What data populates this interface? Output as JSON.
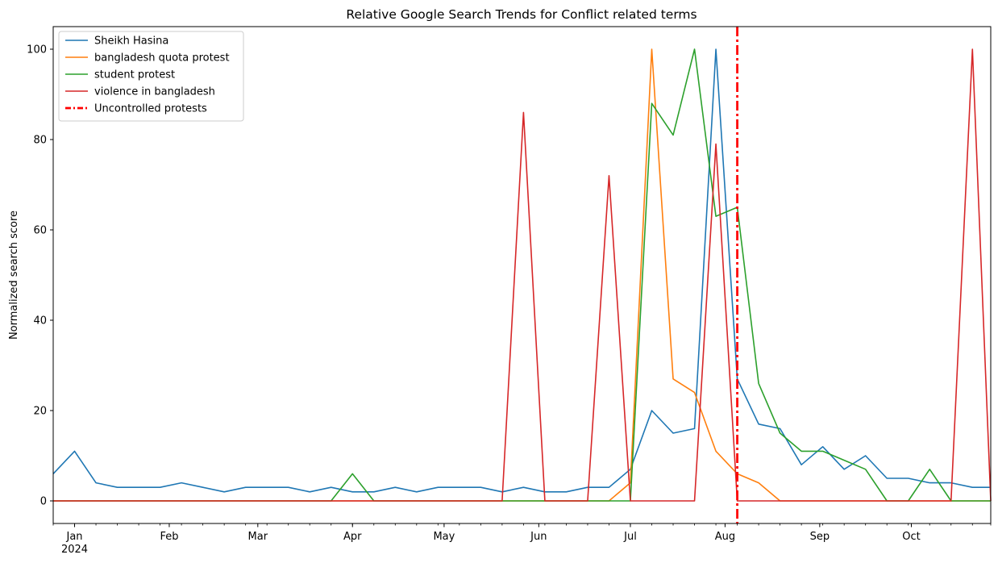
{
  "chart_data": {
    "type": "line",
    "title": "Relative Google Search Trends for Conflict related terms",
    "xlabel": "",
    "ylabel": "Normalized search score",
    "x_axis": "weekly dates",
    "xlim": [
      "2023-12-25",
      "2024-10-27"
    ],
    "ylim": [
      -5,
      105
    ],
    "yticks": [
      0,
      20,
      40,
      60,
      80,
      100
    ],
    "xticks": [
      {
        "date": "2024-01-01",
        "label": "Jan",
        "sublabel": "2024"
      },
      {
        "date": "2024-02-01",
        "label": "Feb",
        "sublabel": ""
      },
      {
        "date": "2024-03-01",
        "label": "Mar",
        "sublabel": ""
      },
      {
        "date": "2024-04-01",
        "label": "Apr",
        "sublabel": ""
      },
      {
        "date": "2024-05-01",
        "label": "May",
        "sublabel": ""
      },
      {
        "date": "2024-06-01",
        "label": "Jun",
        "sublabel": ""
      },
      {
        "date": "2024-07-01",
        "label": "Jul",
        "sublabel": ""
      },
      {
        "date": "2024-08-01",
        "label": "Aug",
        "sublabel": ""
      },
      {
        "date": "2024-09-01",
        "label": "Sep",
        "sublabel": ""
      },
      {
        "date": "2024-10-01",
        "label": "Oct",
        "sublabel": ""
      }
    ],
    "grid": false,
    "legend_position": "top-left",
    "x": [
      "2023-12-25",
      "2024-01-01",
      "2024-01-08",
      "2024-01-15",
      "2024-01-22",
      "2024-01-29",
      "2024-02-05",
      "2024-02-12",
      "2024-02-19",
      "2024-02-26",
      "2024-03-04",
      "2024-03-11",
      "2024-03-18",
      "2024-03-25",
      "2024-04-01",
      "2024-04-08",
      "2024-04-15",
      "2024-04-22",
      "2024-04-29",
      "2024-05-06",
      "2024-05-13",
      "2024-05-20",
      "2024-05-27",
      "2024-06-03",
      "2024-06-10",
      "2024-06-17",
      "2024-06-24",
      "2024-07-01",
      "2024-07-08",
      "2024-07-15",
      "2024-07-22",
      "2024-07-29",
      "2024-08-05",
      "2024-08-12",
      "2024-08-19",
      "2024-08-26",
      "2024-09-02",
      "2024-09-09",
      "2024-09-16",
      "2024-09-23",
      "2024-09-30",
      "2024-10-07",
      "2024-10-14",
      "2024-10-21",
      "2024-10-27"
    ],
    "series": [
      {
        "name": "Sheikh Hasina",
        "color": "#1f77b4",
        "values": [
          6,
          11,
          4,
          3,
          3,
          3,
          4,
          3,
          2,
          3,
          3,
          3,
          2,
          3,
          2,
          2,
          3,
          2,
          3,
          3,
          3,
          2,
          3,
          2,
          2,
          3,
          3,
          7,
          20,
          15,
          16,
          100,
          27,
          17,
          16,
          8,
          12,
          7,
          10,
          5,
          5,
          4,
          4,
          3,
          3
        ]
      },
      {
        "name": "bangladesh quota protest",
        "color": "#ff7f0e",
        "values": [
          0,
          0,
          0,
          0,
          0,
          0,
          0,
          0,
          0,
          0,
          0,
          0,
          0,
          0,
          0,
          0,
          0,
          0,
          0,
          0,
          0,
          0,
          0,
          0,
          0,
          0,
          0,
          4,
          100,
          27,
          24,
          11,
          6,
          4,
          0,
          0,
          0,
          0,
          0,
          0,
          0,
          0,
          0,
          0,
          0
        ]
      },
      {
        "name": "student protest",
        "color": "#2ca02c",
        "values": [
          0,
          0,
          0,
          0,
          0,
          0,
          0,
          0,
          0,
          0,
          0,
          0,
          0,
          0,
          6,
          0,
          0,
          0,
          0,
          0,
          0,
          0,
          0,
          0,
          0,
          0,
          0,
          0,
          88,
          81,
          100,
          63,
          65,
          26,
          15,
          11,
          11,
          9,
          7,
          0,
          0,
          7,
          0,
          0,
          0
        ]
      },
      {
        "name": "violence in bangladesh",
        "color": "#d62728",
        "values": [
          0,
          0,
          0,
          0,
          0,
          0,
          0,
          0,
          0,
          0,
          0,
          0,
          0,
          0,
          0,
          0,
          0,
          0,
          0,
          0,
          0,
          0,
          86,
          0,
          0,
          0,
          72,
          0,
          0,
          0,
          0,
          79,
          0,
          0,
          0,
          0,
          0,
          0,
          0,
          0,
          0,
          0,
          0,
          100,
          0
        ]
      }
    ],
    "annotations": [
      {
        "type": "vline",
        "x": "2024-08-05",
        "label": "Uncontrolled protests",
        "color": "#ff0000",
        "style": "dash-dot"
      }
    ]
  }
}
